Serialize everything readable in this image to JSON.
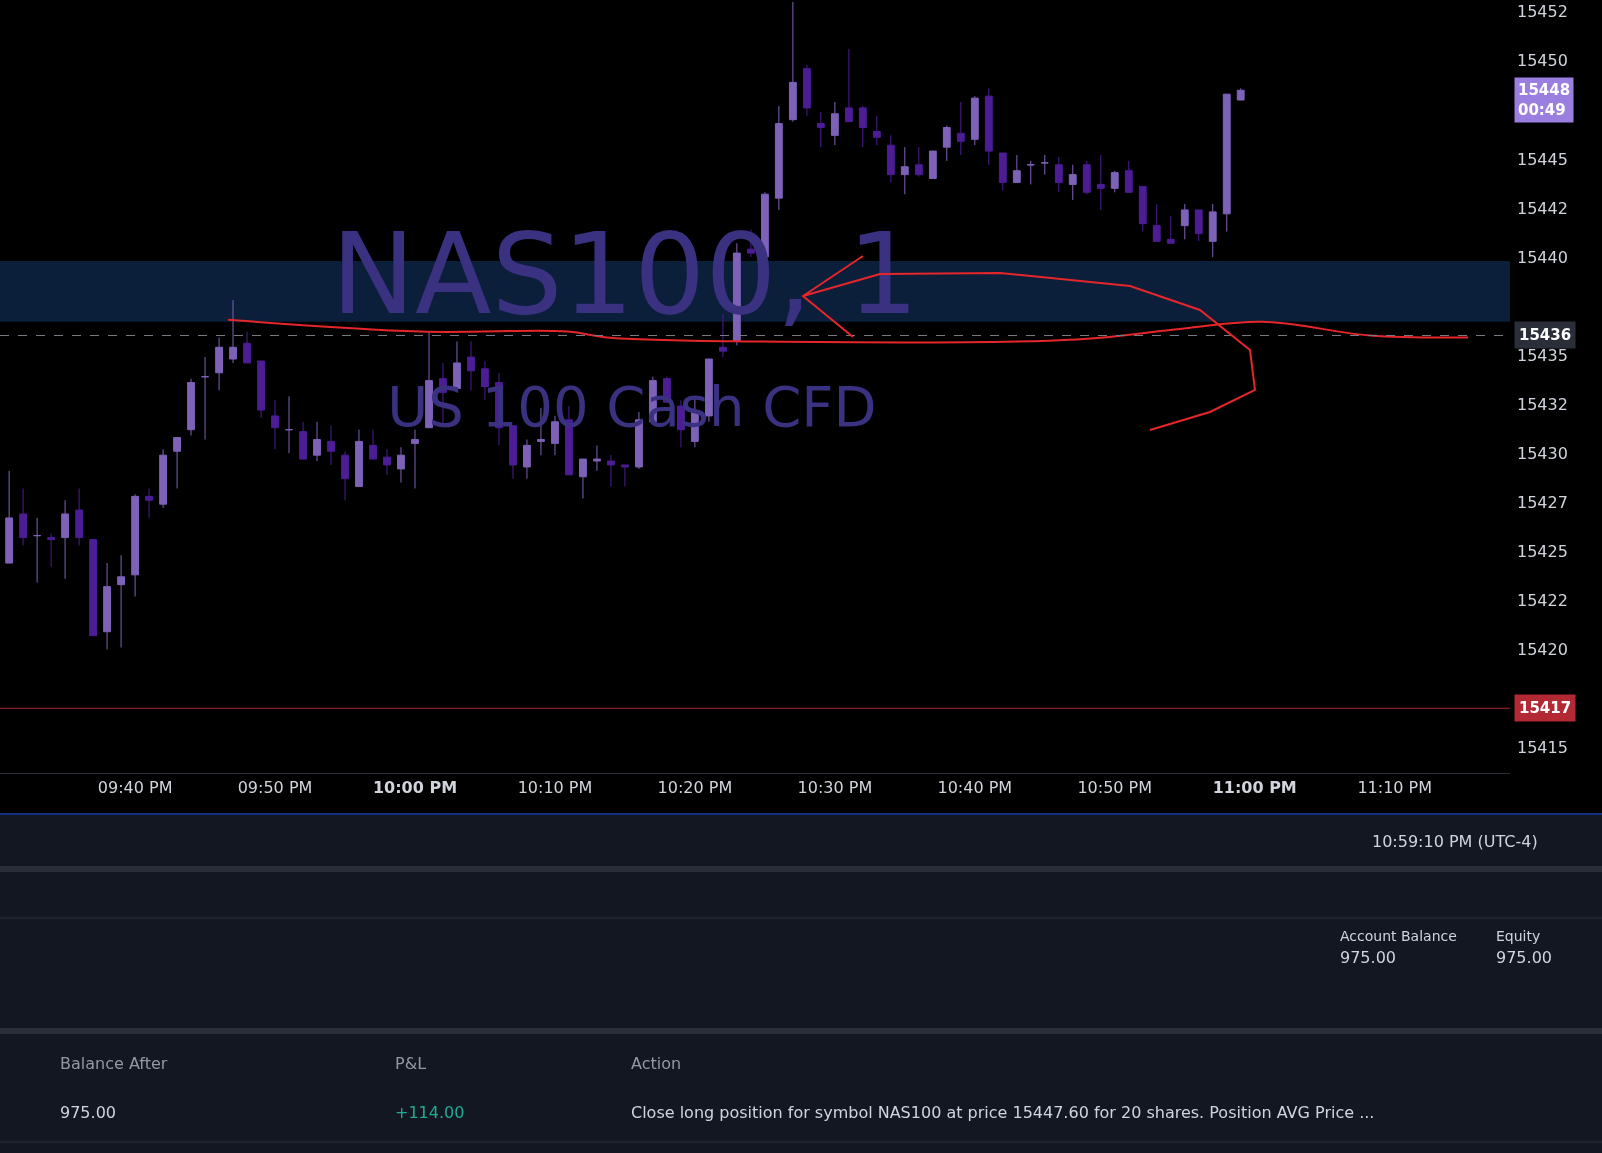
{
  "chart_data": {
    "type": "candlestick",
    "title": "NAS100, 1",
    "subtitle": "US 100 Cash CFD",
    "x": [
      21.5167,
      21.5333,
      21.55,
      21.5667,
      21.5833,
      21.6,
      21.6167,
      21.6333,
      21.65,
      21.6667,
      21.6833,
      21.7,
      21.7167,
      21.7333,
      21.75,
      21.7667,
      21.7833,
      21.8,
      21.8167,
      21.8333,
      21.85,
      21.8667,
      21.8833,
      21.9,
      21.9167,
      21.9333,
      21.95,
      21.9667,
      21.9833,
      22,
      22.0167,
      22.0333,
      22.05,
      22.0667,
      22.0833,
      22.1,
      22.1167,
      22.1333,
      22.15,
      22.1667,
      22.1833,
      22.2,
      22.2167,
      22.2333,
      22.25,
      22.2667,
      22.2833,
      22.3,
      22.3167,
      22.3333,
      22.35,
      22.3667,
      22.3833,
      22.4,
      22.4167,
      22.4333,
      22.45,
      22.4667,
      22.4833,
      22.5,
      22.5167,
      22.5333,
      22.55,
      22.5667,
      22.5833,
      22.6,
      22.6167,
      22.6333,
      22.65,
      22.6667,
      22.6833,
      22.7,
      22.7167,
      22.7333,
      22.75,
      22.7667,
      22.7833,
      22.8,
      22.8167,
      22.8333,
      22.85,
      22.8667,
      22.8833,
      22.9,
      22.9167,
      22.9333,
      22.95,
      22.9667,
      22.9833
    ],
    "ohlc": [
      [
        15424.4,
        15429.1,
        15424.4,
        15426.7
      ],
      [
        15426.9,
        15428.2,
        15425.3,
        15425.7
      ],
      [
        15425.8,
        15426.7,
        15423.4,
        15425.8
      ],
      [
        15425.7,
        15425.9,
        15424.2,
        15425.6
      ],
      [
        15425.7,
        15427.6,
        15423.6,
        15426.9
      ],
      [
        15427.1,
        15428.2,
        15425.3,
        15425.7
      ],
      [
        15425.6,
        15425.6,
        15420.7,
        15420.7
      ],
      [
        15420.9,
        15424.4,
        15420.0,
        15423.2
      ],
      [
        15423.3,
        15424.8,
        15420.1,
        15423.7
      ],
      [
        15423.8,
        15427.9,
        15422.7,
        15427.8
      ],
      [
        15427.8,
        15428.2,
        15426.7,
        15427.6
      ],
      [
        15427.4,
        15430.2,
        15427.2,
        15429.9
      ],
      [
        15430.1,
        15430.8,
        15428.2,
        15430.8
      ],
      [
        15431.2,
        15433.8,
        15430.9,
        15433.6
      ],
      [
        15433.9,
        15434.9,
        15430.7,
        15433.9
      ],
      [
        15434.1,
        15435.9,
        15433.2,
        15435.4
      ],
      [
        15434.8,
        15437.8,
        15434.6,
        15435.4
      ],
      [
        15435.6,
        15436.2,
        15434.6,
        15434.6
      ],
      [
        15434.7,
        15434.7,
        15431.8,
        15432.2
      ],
      [
        15431.9,
        15432.7,
        15430.2,
        15431.3
      ],
      [
        15431.2,
        15432.9,
        15430.0,
        15431.2
      ],
      [
        15431.1,
        15431.6,
        15429.7,
        15429.7
      ],
      [
        15429.9,
        15431.6,
        15429.6,
        15430.7
      ],
      [
        15430.6,
        15431.4,
        15429.4,
        15430.1
      ],
      [
        15429.9,
        15430.1,
        15427.6,
        15428.7
      ],
      [
        15428.3,
        15431.2,
        15428.3,
        15430.6
      ],
      [
        15430.4,
        15431.2,
        15429.7,
        15429.7
      ],
      [
        15429.8,
        15430.2,
        15428.9,
        15429.4
      ],
      [
        15429.2,
        15430.3,
        15428.5,
        15429.9
      ],
      [
        15430.5,
        15431.2,
        15428.2,
        15430.7
      ],
      [
        15431.3,
        15436.2,
        15431.3,
        15433.7
      ],
      [
        15433.8,
        15434.6,
        15431.4,
        15433.1
      ],
      [
        15433.3,
        15435.7,
        15433.2,
        15434.6
      ],
      [
        15434.9,
        15435.7,
        15433.2,
        15434.2
      ],
      [
        15434.3,
        15434.7,
        15432.7,
        15433.4
      ],
      [
        15433.6,
        15434.1,
        15430.4,
        15431.3
      ],
      [
        15431.4,
        15431.4,
        15428.7,
        15429.4
      ],
      [
        15429.3,
        15430.7,
        15428.7,
        15430.4
      ],
      [
        15430.6,
        15432.3,
        15429.9,
        15430.7
      ],
      [
        15430.5,
        15431.9,
        15429.9,
        15431.6
      ],
      [
        15431.7,
        15432.4,
        15428.9,
        15428.9
      ],
      [
        15428.8,
        15429.7,
        15427.7,
        15429.7
      ],
      [
        15429.6,
        15430.4,
        15429.1,
        15429.7
      ],
      [
        15429.6,
        15429.9,
        15428.3,
        15429.4
      ],
      [
        15429.4,
        15429.4,
        15428.3,
        15429.3
      ],
      [
        15429.3,
        15432.1,
        15429.2,
        15431.7
      ],
      [
        15431.6,
        15433.9,
        15431.6,
        15433.7
      ],
      [
        15433.8,
        15433.9,
        15432.6,
        15432.6
      ],
      [
        15432.4,
        15432.7,
        15430.3,
        15431.2
      ],
      [
        15430.6,
        15432.8,
        15430.3,
        15432.1
      ],
      [
        15431.9,
        15434.8,
        15431.6,
        15434.8
      ],
      [
        15435.4,
        15437.1,
        15434.9,
        15435.2
      ],
      [
        15435.7,
        15440.7,
        15435.5,
        15440.2
      ],
      [
        15440.4,
        15441.4,
        15440.0,
        15440.2
      ],
      [
        15440.0,
        15443.3,
        15439.8,
        15443.2
      ],
      [
        15443.0,
        15447.7,
        15442.4,
        15446.8
      ],
      [
        15447.0,
        15453.0,
        15446.9,
        15448.9
      ],
      [
        15449.6,
        15449.8,
        15447.2,
        15447.6
      ],
      [
        15446.8,
        15447.4,
        15445.6,
        15446.6
      ],
      [
        15446.2,
        15447.9,
        15445.7,
        15447.3
      ],
      [
        15447.6,
        15450.6,
        15446.9,
        15446.9
      ],
      [
        15447.6,
        15447.7,
        15445.6,
        15446.6
      ],
      [
        15446.4,
        15447.2,
        15445.7,
        15446.1
      ],
      [
        15445.7,
        15446.2,
        15443.8,
        15444.2
      ],
      [
        15444.2,
        15445.6,
        15443.2,
        15444.6
      ],
      [
        15444.7,
        15445.6,
        15444.1,
        15444.2
      ],
      [
        15444.0,
        15445.4,
        15444.0,
        15445.4
      ],
      [
        15445.6,
        15446.7,
        15444.9,
        15446.6
      ],
      [
        15446.3,
        15447.9,
        15445.2,
        15445.9
      ],
      [
        15446.0,
        15448.2,
        15445.7,
        15448.1
      ],
      [
        15448.2,
        15448.6,
        15444.7,
        15445.4
      ],
      [
        15445.3,
        15445.3,
        15443.4,
        15443.8
      ],
      [
        15443.8,
        15445.2,
        15443.8,
        15444.4
      ],
      [
        15444.7,
        15444.9,
        15443.7,
        15444.7
      ],
      [
        15444.8,
        15445.2,
        15444.2,
        15444.8
      ],
      [
        15444.7,
        15445.1,
        15443.3,
        15443.8
      ],
      [
        15443.7,
        15444.7,
        15442.9,
        15444.2
      ],
      [
        15444.7,
        15444.9,
        15443.2,
        15443.3
      ],
      [
        15443.7,
        15445.2,
        15442.4,
        15443.5
      ],
      [
        15443.5,
        15444.4,
        15443.3,
        15444.3
      ],
      [
        15444.4,
        15444.9,
        15443.3,
        15443.3
      ],
      [
        15443.6,
        15443.6,
        15441.3,
        15441.7
      ],
      [
        15441.6,
        15442.7,
        15440.8,
        15440.8
      ],
      [
        15440.9,
        15442.1,
        15440.7,
        15440.7
      ],
      [
        15441.6,
        15442.7,
        15440.9,
        15442.4
      ],
      [
        15442.4,
        15442.4,
        15440.8,
        15441.2
      ],
      [
        15440.8,
        15442.7,
        15440.0,
        15442.3
      ],
      [
        15442.2,
        15448.3,
        15441.3,
        15448.3
      ],
      [
        15448.0,
        15448.6,
        15448.0,
        15448.5
      ]
    ],
    "colors": [
      "#7e62b8",
      "#4c1d95",
      "#7e62b8",
      "#4c1d95",
      "#7e62b8",
      "#4c1d95",
      "#4c1d95",
      "#7e62b8",
      "#7e62b8",
      "#7e62b8",
      "#4c1d95",
      "#7e62b8",
      "#7e62b8",
      "#7e62b8",
      "#7e62b8",
      "#7e62b8",
      "#7e62b8",
      "#4c1d95",
      "#4c1d95",
      "#4c1d95",
      "#7e62b8",
      "#4c1d95",
      "#7e62b8",
      "#4c1d95",
      "#4c1d95",
      "#7e62b8",
      "#4c1d95",
      "#4c1d95",
      "#7e62b8",
      "#7e62b8",
      "#7e62b8",
      "#4c1d95",
      "#7e62b8",
      "#4c1d95",
      "#4c1d95",
      "#4c1d95",
      "#4c1d95",
      "#7e62b8",
      "#7e62b8",
      "#7e62b8",
      "#4c1d95",
      "#7e62b8",
      "#7e62b8",
      "#4c1d95",
      "#4c1d95",
      "#7e62b8",
      "#7e62b8",
      "#4c1d95",
      "#4c1d95",
      "#7e62b8",
      "#7e62b8",
      "#4c1d95",
      "#7e62b8",
      "#4c1d95",
      "#7e62b8",
      "#7e62b8",
      "#7e62b8",
      "#4c1d95",
      "#4c1d95",
      "#7e62b8",
      "#4c1d95",
      "#4c1d95",
      "#4c1d95",
      "#4c1d95",
      "#7e62b8",
      "#4c1d95",
      "#7e62b8",
      "#7e62b8",
      "#4c1d95",
      "#7e62b8",
      "#4c1d95",
      "#4c1d95",
      "#7e62b8",
      "#7e62b8",
      "#7e62b8",
      "#4c1d95",
      "#7e62b8",
      "#4c1d95",
      "#4c1d95",
      "#7e62b8",
      "#4c1d95",
      "#4c1d95",
      "#4c1d95",
      "#4c1d95",
      "#7e62b8",
      "#4c1d95",
      "#7e62b8",
      "#7e62b8",
      "#7e62b8"
    ],
    "xlim": [
      21.5058,
      23.304
    ],
    "ylim": [
      15413.7,
      15453.1
    ],
    "xticks": [
      {
        "value": 21.6667,
        "label": "09:40 PM"
      },
      {
        "value": 21.8333,
        "label": "09:50 PM"
      },
      {
        "value": 22,
        "label": "10:00 PM"
      },
      {
        "value": 22.1667,
        "label": "10:10 PM"
      },
      {
        "value": 22.3333,
        "label": "10:20 PM"
      },
      {
        "value": 22.5,
        "label": "10:30 PM"
      },
      {
        "value": 22.6667,
        "label": "10:40 PM"
      },
      {
        "value": 22.8333,
        "label": "10:50 PM"
      },
      {
        "value": 23,
        "label": "11:00 PM"
      },
      {
        "value": 23.1667,
        "label": "11:10 PM"
      }
    ],
    "yticks": [
      {
        "value": 15452.5,
        "label": "15452"
      },
      15450,
      15445,
      {
        "value": 15442.5,
        "label": "15442"
      },
      15440,
      15435,
      {
        "value": 15432.5,
        "label": "15432"
      },
      15430,
      {
        "value": 15427.5,
        "label": "15427"
      },
      15425,
      {
        "value": 15422.5,
        "label": "15422"
      },
      15420,
      15415
    ],
    "ref_lines": [
      {
        "axis": "y",
        "value": 15417,
        "label": "15417",
        "color": "#b22833",
        "line_style": "solid"
      },
      {
        "axis": "y",
        "value": 15436,
        "label": "15436",
        "color": "#787b86",
        "line_style": "dashed"
      }
    ],
    "bands": [
      {
        "axis": "y",
        "from": 15436.7,
        "to": 15439.8,
        "color": "#0b1e3a"
      }
    ],
    "series": [
      {
        "type": "line",
        "color": "#e5262b",
        "x": [
          21.7774,
          22.007,
          22.1818,
          22.2284,
          22.3916,
          22.7879,
          22.9044,
          23.0093,
          23.1375,
          23.2541
        ],
        "values": [
          15436.8,
          15436.2,
          15436.2,
          15435.9,
          15435.7,
          15435.8,
          15436.3,
          15436.7,
          15436.0,
          15435.9
        ]
      }
    ],
    "grid": false,
    "legend": false,
    "annotations": [
      "15448\n00:49",
      "10:59:10 PM (UTC-4)",
      "Account Balance",
      "975.00",
      "Equity",
      "975.00",
      "Balance After",
      "P&L",
      "Action",
      "975.00",
      "+114.00",
      "Close long position for symbol NAS100 at price 15447.60 for 20 shares. Position AVG Price ..."
    ]
  }
}
